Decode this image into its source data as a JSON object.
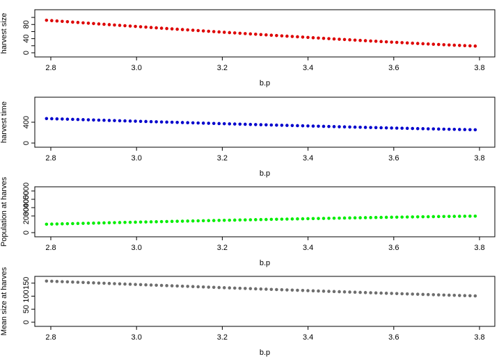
{
  "chart_data": [
    {
      "type": "scatter",
      "xlabel": "b.p",
      "ylabel": "harvest size",
      "xlim": [
        2.8,
        3.8
      ],
      "xticks": [
        "2.8",
        "3.0",
        "3.2",
        "3.4",
        "3.6",
        "3.8"
      ],
      "ylim": [
        0,
        110
      ],
      "yticks": [
        "0",
        "40",
        "80"
      ],
      "yticks_minor": [
        20,
        60,
        100
      ],
      "color": "#dd0000",
      "x_start": 2.79,
      "x_end": 3.79,
      "n_points": 83,
      "y_start": 92,
      "y_end": 19,
      "y_curve": 0.55
    },
    {
      "type": "scatter",
      "xlabel": "b.p",
      "ylabel": "harvest time",
      "xlim": [
        2.8,
        3.8
      ],
      "xticks": [
        "2.8",
        "3.0",
        "3.2",
        "3.4",
        "3.6",
        "3.8"
      ],
      "ylim": [
        0,
        800
      ],
      "yticks": [
        "0",
        "400"
      ],
      "color": "#0000cc",
      "x_start": 2.79,
      "x_end": 3.79,
      "n_points": 83,
      "y_start": 470,
      "y_end": 255,
      "y_curve": 0.6
    },
    {
      "type": "scatter",
      "xlabel": "b.p",
      "ylabel": "Population at harves",
      "xlim": [
        2.8,
        3.8
      ],
      "xticks": [
        "2.8",
        "3.0",
        "3.2",
        "3.4",
        "3.6",
        "3.8"
      ],
      "ylim": [
        0,
        5000
      ],
      "yticks": [
        "0",
        "2000",
        "3000",
        "4000",
        "5000"
      ],
      "color": "#00ee00",
      "x_start": 2.79,
      "x_end": 3.79,
      "n_points": 83,
      "y_start": 1010,
      "y_end": 1980,
      "y_curve": 0.4
    },
    {
      "type": "scatter",
      "xlabel": "b.p",
      "ylabel": "Mean size at harves",
      "xlim": [
        2.8,
        3.8
      ],
      "xticks": [
        "2.8",
        "3.0",
        "3.2",
        "3.4",
        "3.6",
        "3.8"
      ],
      "ylim": [
        0,
        160
      ],
      "yticks": [
        "0",
        "50",
        "100",
        "150"
      ],
      "color": "#6e6e6e",
      "x_start": 2.79,
      "x_end": 3.79,
      "n_points": 83,
      "y_start": 158,
      "y_end": 101,
      "y_curve": 0.7
    }
  ]
}
